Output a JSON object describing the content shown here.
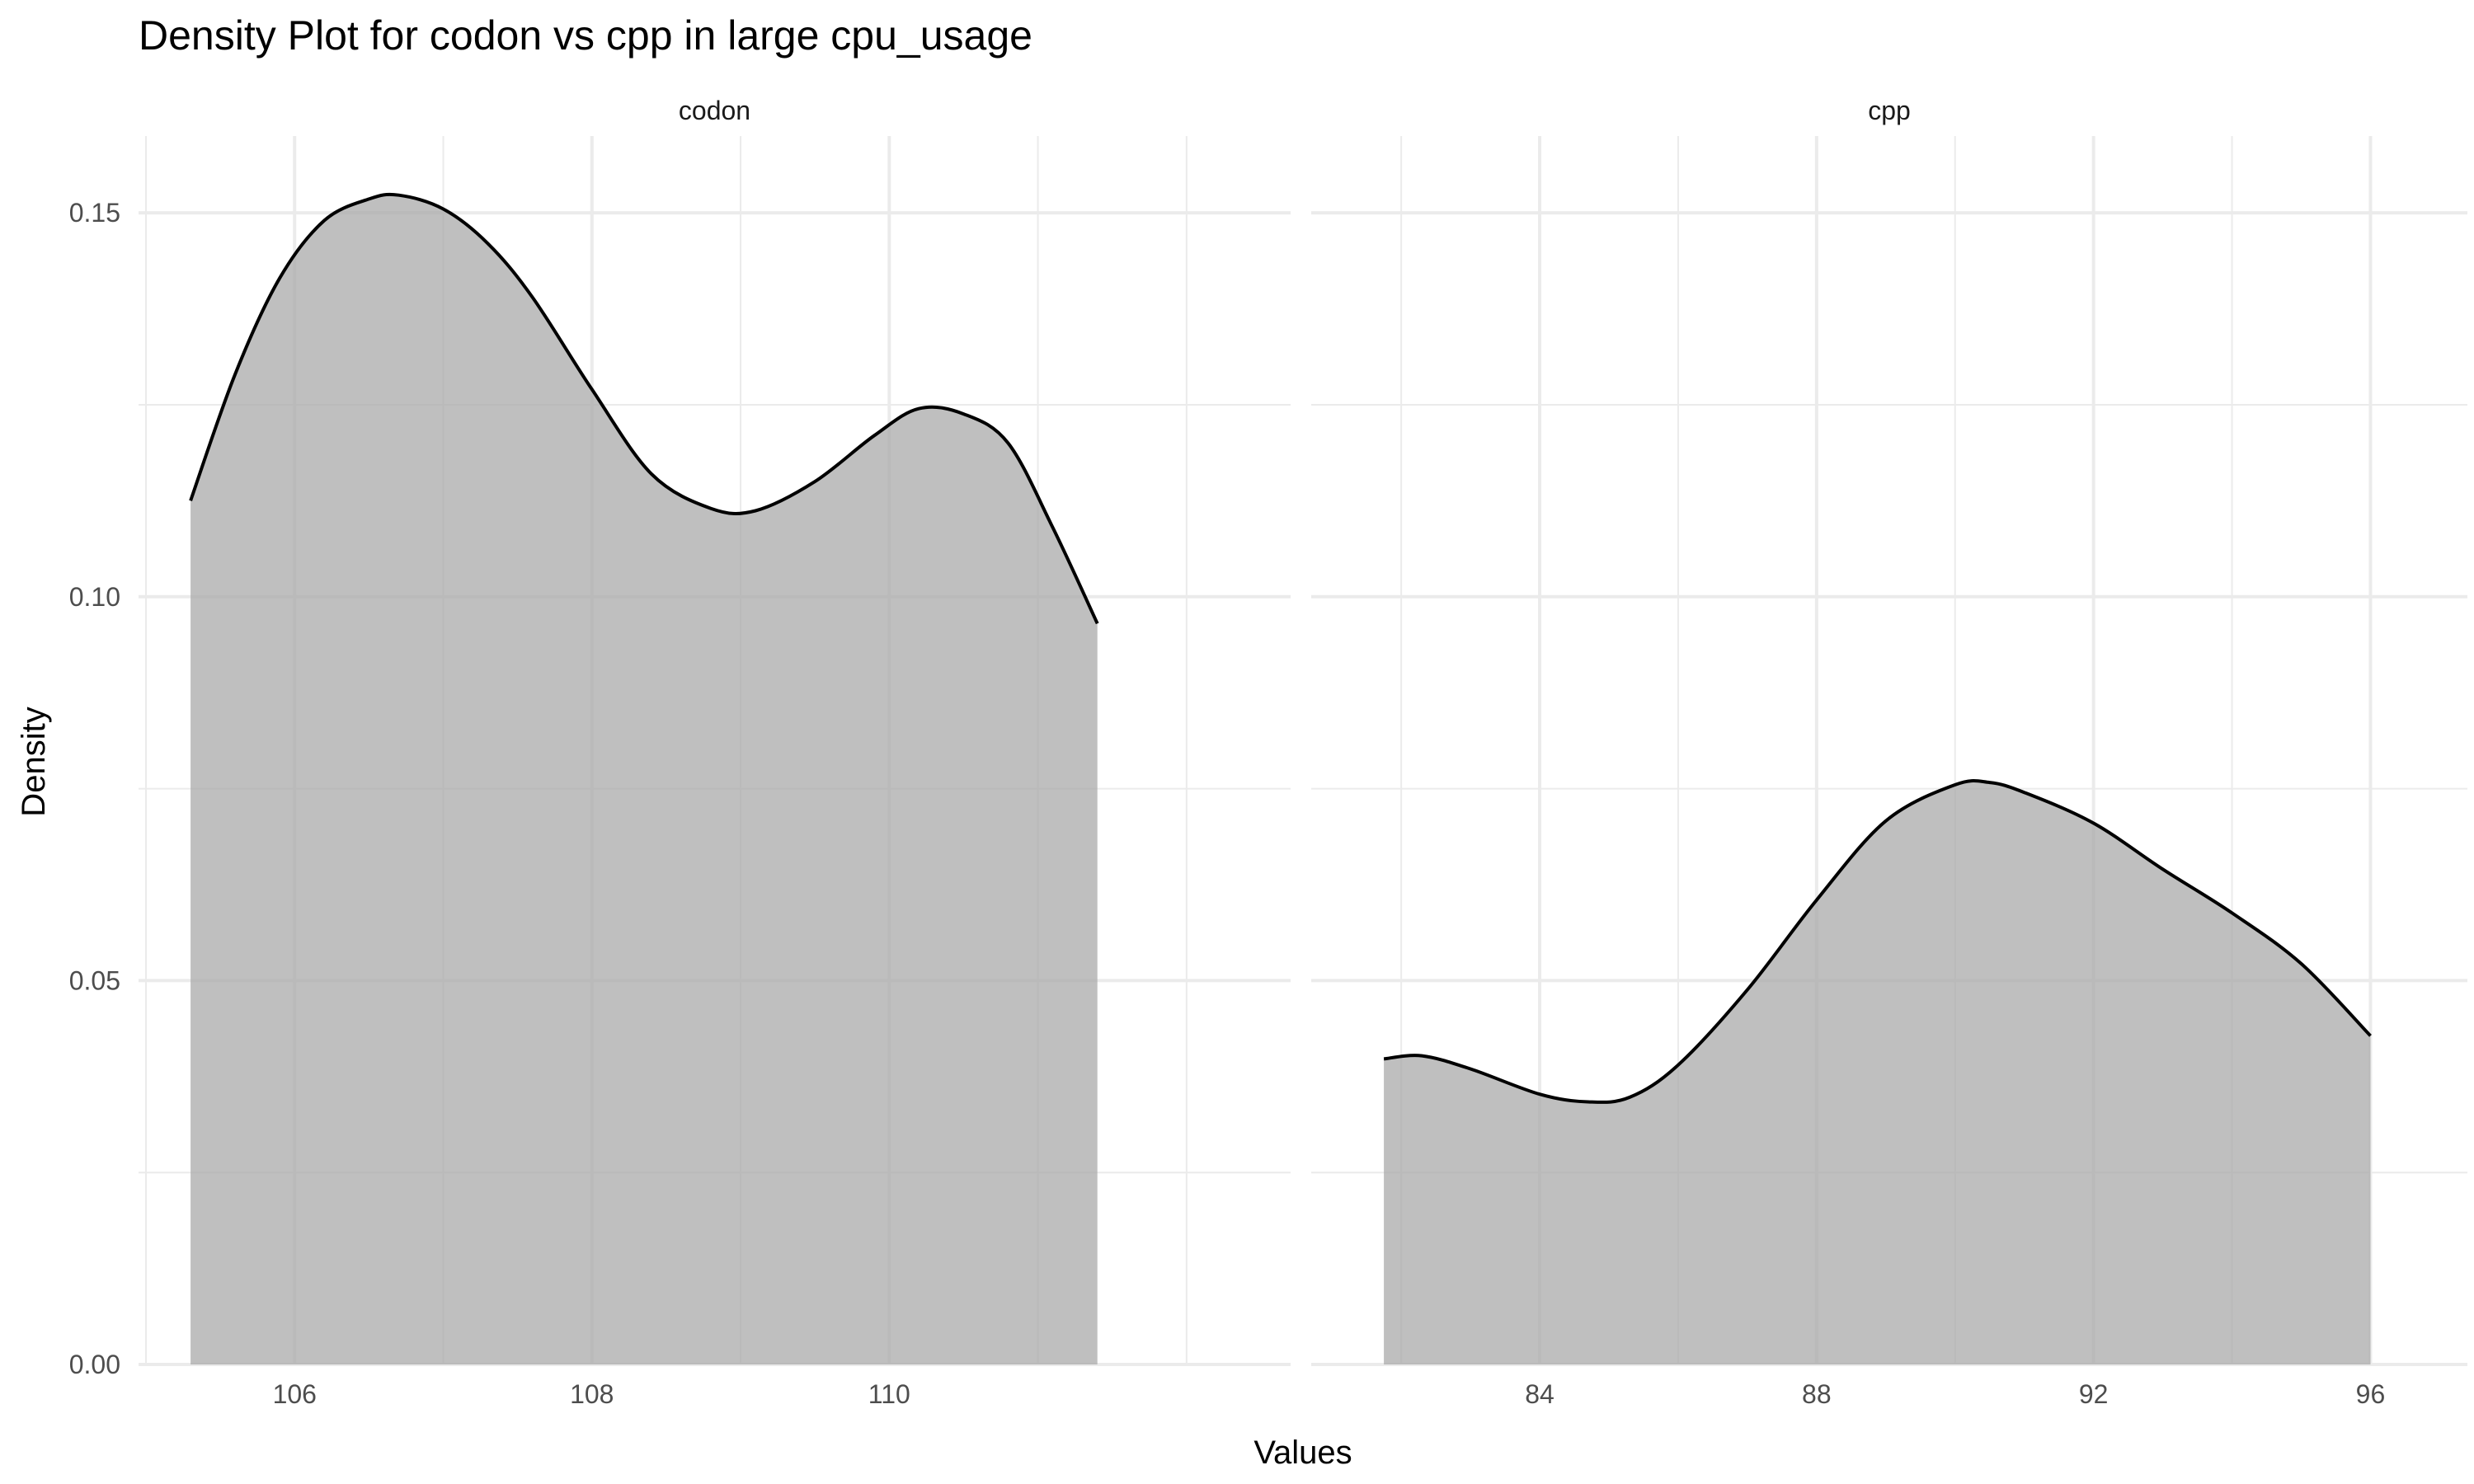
{
  "chart_data": {
    "type": "area",
    "title": "Density Plot for codon vs cpp in large cpu_usage",
    "xlabel": "Values",
    "ylabel": "Density",
    "ylim": [
      0,
      0.16
    ],
    "yticks": [
      0.0,
      0.05,
      0.1,
      0.15
    ],
    "ytick_labels": [
      "0.00",
      "0.05",
      "0.10",
      "0.15"
    ],
    "grid": true,
    "fill_color": "#bebebe",
    "line_color": "#000000",
    "panels": [
      {
        "label": "codon",
        "xlim": [
          104.95,
          112.7
        ],
        "xticks": [
          106,
          108,
          110
        ],
        "xtick_labels": [
          "106",
          "108",
          "110"
        ],
        "x_minor": [
          105,
          107,
          109,
          111,
          112
        ],
        "x": [
          105.3,
          105.6,
          105.9,
          106.2,
          106.5,
          106.7,
          107.0,
          107.3,
          107.6,
          108.0,
          108.4,
          108.8,
          109.1,
          109.5,
          109.9,
          110.2,
          110.5,
          110.8,
          111.1,
          111.4
        ],
        "y": [
          0.1125,
          0.129,
          0.1415,
          0.149,
          0.1518,
          0.1523,
          0.1505,
          0.146,
          0.139,
          0.127,
          0.116,
          0.1115,
          0.1112,
          0.115,
          0.121,
          0.1245,
          0.1238,
          0.12,
          0.109,
          0.0965
        ]
      },
      {
        "label": "cpp",
        "xlim": [
          80.7,
          97.4
        ],
        "xticks": [
          84,
          88,
          92,
          96
        ],
        "xtick_labels": [
          "84",
          "88",
          "92",
          "96"
        ],
        "x_minor": [
          82,
          86,
          90,
          94
        ],
        "x": [
          81.75,
          82.3,
          83.0,
          84.0,
          84.7,
          85.3,
          86.0,
          87.0,
          88.0,
          89.0,
          90.0,
          90.5,
          91.0,
          92.0,
          93.0,
          94.0,
          95.0,
          96.0
        ],
        "y": [
          0.0398,
          0.0402,
          0.0385,
          0.0352,
          0.0342,
          0.0348,
          0.039,
          0.0488,
          0.0605,
          0.0708,
          0.0755,
          0.0758,
          0.0745,
          0.0705,
          0.0645,
          0.0588,
          0.0522,
          0.0428
        ]
      }
    ]
  }
}
